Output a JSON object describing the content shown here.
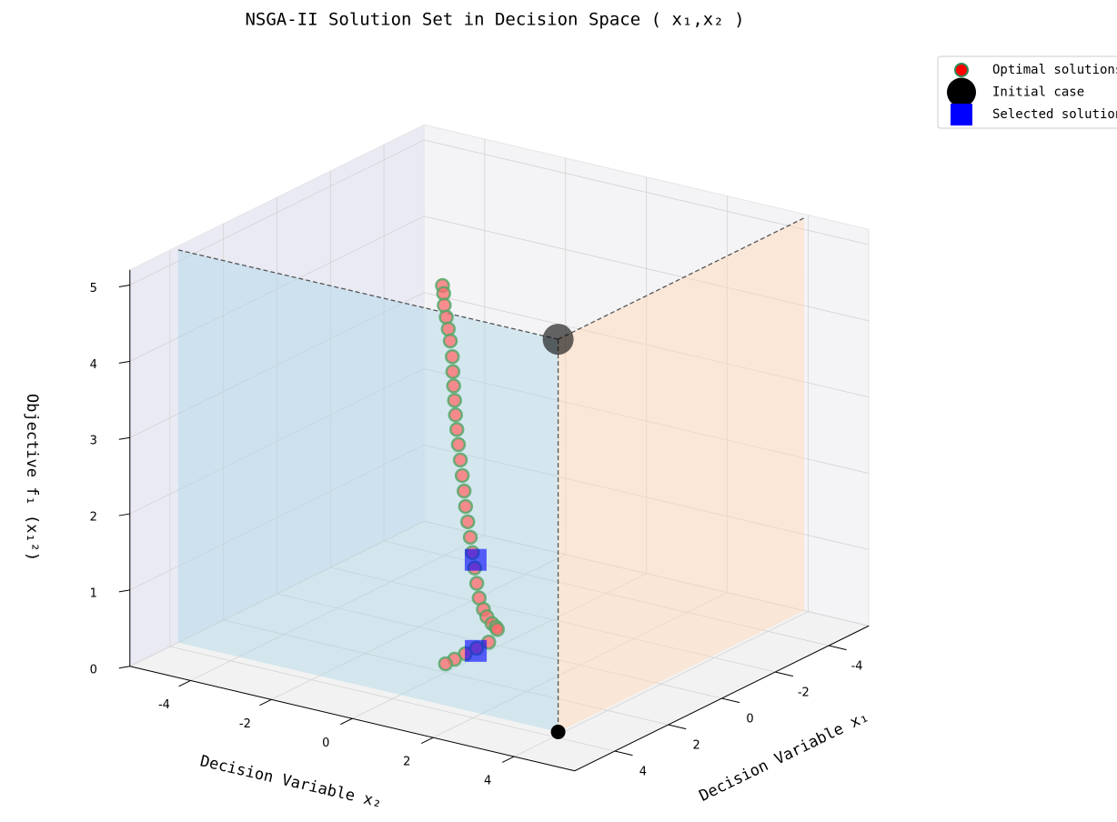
{
  "chart_data": {
    "type": "scatter3d",
    "title": "NSGA-II Solution Set in Decision Space ( x₁,x₂ )",
    "xlabel": "Decision Variable x₁",
    "ylabel": "Decision Variable x₂",
    "zlabel": "Objective f₁ (x₁²)",
    "xlim": [
      -5.5,
      5.5
    ],
    "ylim": [
      -5.5,
      5.5
    ],
    "zlim": [
      0,
      5.2
    ],
    "xticks": [
      -4,
      -2,
      0,
      2,
      4
    ],
    "yticks": [
      -4,
      -2,
      0,
      2,
      4
    ],
    "zticks": [
      0,
      1,
      2,
      3,
      4,
      5
    ],
    "grid": true,
    "legend": "upper right",
    "series": [
      {
        "name": "Optimal solutions",
        "color": "#ff6b6b",
        "edgecolor": "#4fa866",
        "x": [
          1.75,
          1.75,
          1.76,
          1.76,
          1.76,
          1.76,
          1.76,
          1.74,
          1.68,
          1.63,
          1.58,
          1.53,
          1.5,
          1.49,
          1.48,
          1.47,
          1.46,
          1.44,
          1.42,
          1.4,
          1.38,
          1.36,
          1.3,
          1.05,
          0.8,
          0.5,
          0.25,
          0.15,
          0.4,
          0.7,
          1.0,
          1.3,
          1.56
        ],
        "y": [
          -0.25,
          -0.22,
          -0.2,
          -0.15,
          -0.1,
          -0.05,
          0,
          0,
          -0.02,
          -0.03,
          -0.04,
          -0.04,
          -0.02,
          0.02,
          0.06,
          0.1,
          0.13,
          0.17,
          0.22,
          0.26,
          0.3,
          0.34,
          0.36,
          0.3,
          0.22,
          0.15,
          0.08,
          0.05,
          0,
          -0.1,
          -0.18,
          -0.25,
          -0.3
        ],
        "z": [
          5.0,
          4.9,
          4.75,
          4.6,
          4.45,
          4.3,
          4.1,
          3.9,
          3.7,
          3.5,
          3.3,
          3.1,
          2.9,
          2.7,
          2.5,
          2.3,
          2.1,
          1.9,
          1.7,
          1.5,
          1.3,
          1.1,
          0.9,
          0.7,
          0.55,
          0.4,
          0.3,
          0.25,
          0.12,
          0.08,
          0.05,
          0.02,
          0.0
        ]
      },
      {
        "name": "Initial case",
        "color": "#000000",
        "x": [
          3.7
        ],
        "y": [
          3.9
        ],
        "z": [
          5.15
        ]
      },
      {
        "name": "Selected solutions",
        "color": "#0000ff",
        "x": [
          1.34,
          0.73
        ],
        "y": [
          0.3,
          -0.1
        ],
        "z": [
          1.4,
          0.05
        ]
      }
    ]
  }
}
